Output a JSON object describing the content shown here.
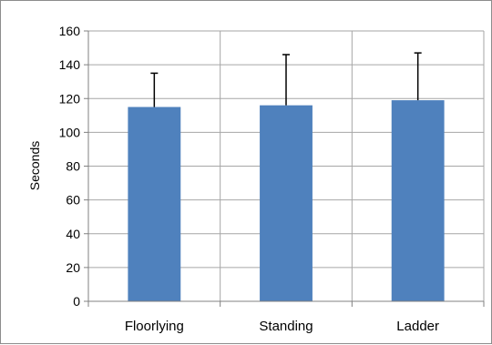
{
  "chart_data": {
    "type": "bar",
    "categories": [
      "Floorlying",
      "Standing",
      "Ladder"
    ],
    "values": [
      115,
      116,
      119
    ],
    "error_upper": [
      135,
      146,
      147
    ],
    "ylabel": "Seconds",
    "xlabel": "",
    "ylim": [
      0,
      160
    ],
    "yticks": [
      "0",
      "20",
      "40",
      "60",
      "80",
      "100",
      "120",
      "140",
      "160"
    ],
    "grid": true,
    "legend": "none",
    "colors": {
      "bar": "#4f81bd",
      "grid": "#a6a6a6",
      "axis": "#808080",
      "error": "#000000"
    }
  }
}
